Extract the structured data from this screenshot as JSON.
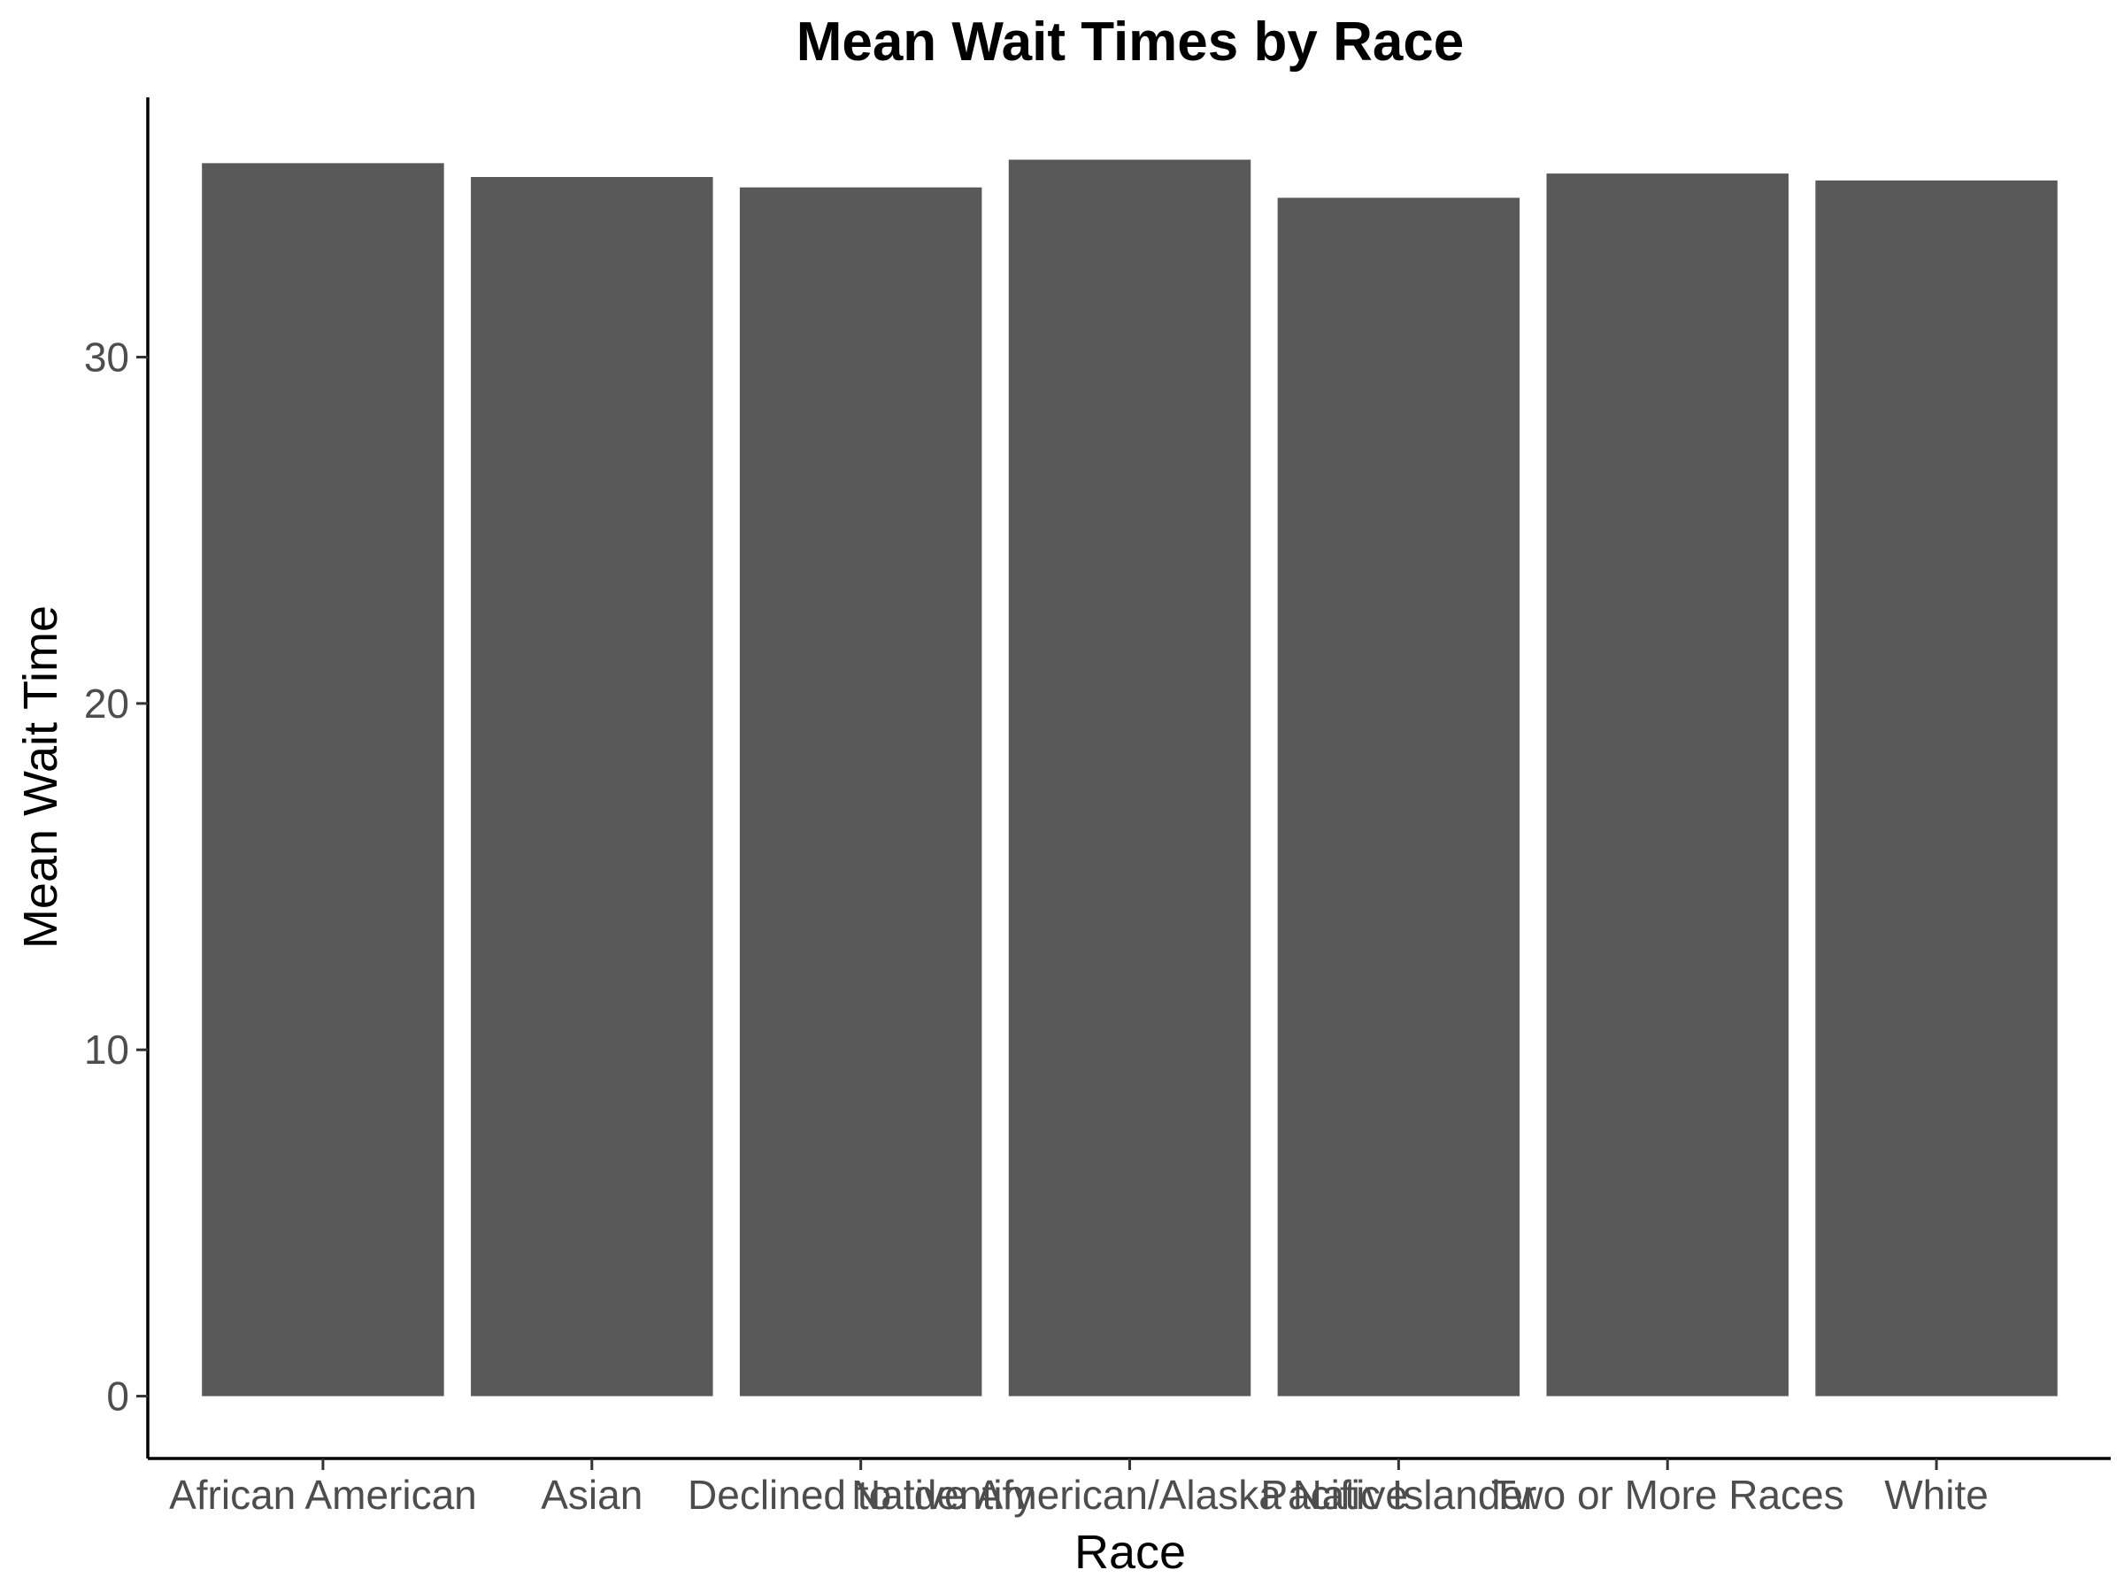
{
  "chart_data": {
    "type": "bar",
    "title": "Mean Wait Times by Race",
    "xlabel": "Race",
    "ylabel": "Mean Wait Time",
    "categories": [
      "African American",
      "Asian",
      "Declined to Identify",
      "Native American/Alaska Native",
      "Pacific Islander",
      "Two or More Races",
      "White"
    ],
    "values": [
      35.6,
      35.2,
      34.9,
      35.7,
      34.6,
      35.3,
      35.1
    ],
    "ylim": [
      -1.8,
      37.5
    ],
    "yticks": [
      0,
      10,
      20,
      30
    ],
    "ytick_labels": [
      "0",
      "10",
      "20",
      "30"
    ],
    "grid": false,
    "legend": "none",
    "colors": {
      "bar": "#595959",
      "axis": "#000000",
      "tick_label": "#4d4d4d"
    }
  }
}
